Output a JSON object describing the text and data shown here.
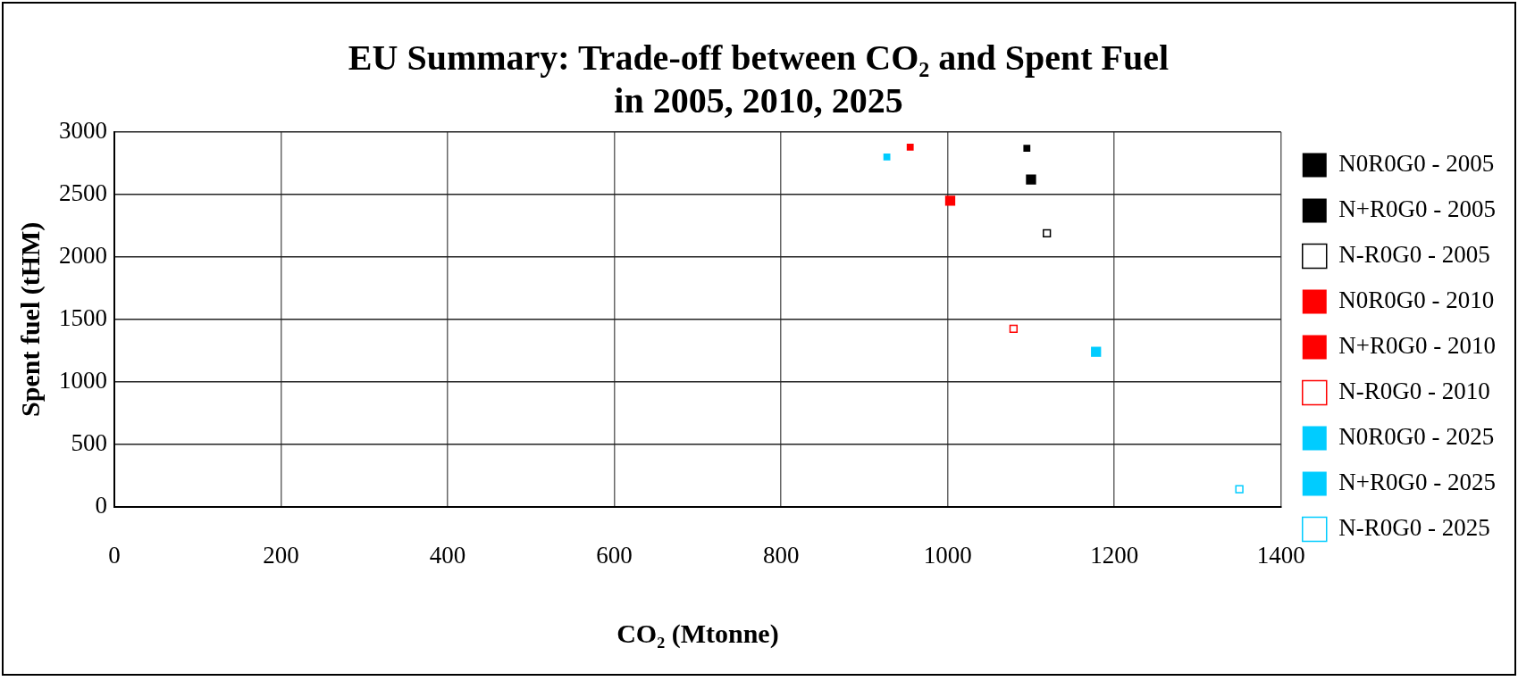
{
  "chart_data": {
    "type": "scatter",
    "title": [
      "EU Summary: Trade-off between CO₂ and Spent Fuel",
      "in 2005, 2010, 2025"
    ],
    "xlabel": "CO₂ (Mtonne)",
    "ylabel": "Spent fuel (tHM)",
    "xlim": [
      0,
      1400
    ],
    "xticks": [
      0,
      200,
      400,
      600,
      800,
      1000,
      1200,
      1400
    ],
    "ylim": [
      0,
      3000
    ],
    "yticks": [
      0,
      500,
      1000,
      1500,
      2000,
      2500,
      3000
    ],
    "grid": true,
    "legend": "right",
    "marker": "square",
    "series": [
      {
        "name": "N0R0G0 - 2005",
        "color": "#000000",
        "x": [
          1100
        ],
        "values": [
          2620
        ]
      },
      {
        "name": "N+R0G0 - 2005",
        "color": "#000000",
        "x": [
          1095
        ],
        "values": [
          2870
        ]
      },
      {
        "name": "N-R0G0 - 2005",
        "color": "#000000",
        "x": [
          1119
        ],
        "values": [
          2190
        ]
      },
      {
        "name": "N0R0G0 - 2010",
        "color": "#ff0000",
        "x": [
          1003
        ],
        "values": [
          2450
        ]
      },
      {
        "name": "N+R0G0 - 2010",
        "color": "#ff0000",
        "x": [
          955
        ],
        "values": [
          2880
        ]
      },
      {
        "name": "N-R0G0 - 2010",
        "color": "#ff0000",
        "x": [
          1079
        ],
        "values": [
          1425
        ]
      },
      {
        "name": "N0R0G0 - 2025",
        "color": "#00ccff",
        "x": [
          1178
        ],
        "values": [
          1240
        ]
      },
      {
        "name": "N+R0G0 - 2025",
        "color": "#00ccff",
        "x": [
          927
        ],
        "values": [
          2800
        ]
      },
      {
        "name": "N-R0G0 - 2025",
        "color": "#00ccff",
        "x": [
          1350
        ],
        "values": [
          140
        ]
      }
    ]
  }
}
